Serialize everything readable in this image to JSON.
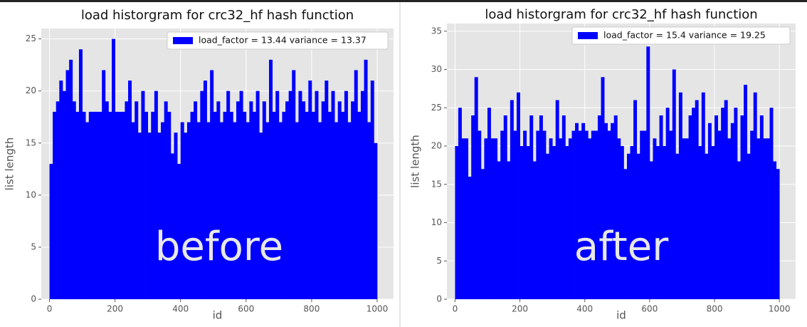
{
  "chart_data": [
    {
      "type": "histogram",
      "title": "load historgram for crc32_hf hash function",
      "xlabel": "id",
      "ylabel": "list length",
      "annotation": "before",
      "color": "#0000ff",
      "legend": "upper right",
      "grid": true,
      "series": [
        {
          "name": "load_factor = 13.44 variance = 13.37",
          "color": "#0000ff",
          "bins": [
            0,
            10,
            20,
            30,
            40,
            50,
            60,
            70,
            80,
            90,
            100,
            110,
            120,
            130,
            140,
            150,
            160,
            170,
            180,
            190,
            200,
            210,
            220,
            230,
            240,
            250,
            260,
            270,
            280,
            290,
            300,
            310,
            320,
            330,
            340,
            350,
            360,
            370,
            380,
            390,
            400,
            410,
            420,
            430,
            440,
            450,
            460,
            470,
            480,
            490,
            500,
            510,
            520,
            530,
            540,
            550,
            560,
            570,
            580,
            590,
            600,
            610,
            620,
            630,
            640,
            650,
            660,
            670,
            680,
            690,
            700,
            710,
            720,
            730,
            740,
            750,
            760,
            770,
            780,
            790,
            800,
            810,
            820,
            830,
            840,
            850,
            860,
            870,
            880,
            890,
            900,
            910,
            920,
            930,
            940,
            950,
            960,
            970,
            980,
            990,
            1000
          ],
          "values": [
            13,
            18,
            19,
            21,
            20,
            22,
            23,
            19,
            18,
            24,
            18,
            17,
            18,
            18,
            18,
            18,
            22,
            19,
            18,
            25,
            18,
            18,
            18,
            19,
            21,
            17,
            19,
            16,
            20,
            18,
            16,
            18,
            20,
            16,
            17,
            19,
            18,
            14,
            16,
            13,
            17,
            16,
            17,
            18,
            19,
            17,
            20,
            21,
            17,
            22,
            18,
            19,
            17,
            18,
            20,
            18,
            17,
            19,
            20,
            18,
            17,
            19,
            18,
            20,
            16,
            19,
            17,
            23,
            18,
            20,
            17,
            18,
            19,
            20,
            22,
            17,
            20,
            19,
            18,
            21,
            18,
            20,
            17,
            19,
            21,
            18,
            20,
            17,
            19,
            18,
            20,
            17,
            19,
            22,
            18,
            20,
            23,
            17,
            21,
            15
          ]
        }
      ],
      "xlim": [
        -25,
        1050
      ],
      "xticks": [
        0,
        200,
        400,
        600,
        800,
        1000
      ],
      "ylim": [
        0,
        26
      ],
      "yticks": [
        0,
        5,
        10,
        15,
        20,
        25
      ]
    },
    {
      "type": "histogram",
      "title": "load historgram for crc32_hf hash function",
      "xlabel": "id",
      "ylabel": "list length",
      "annotation": "after",
      "color": "#0000ff",
      "legend": "upper right",
      "grid": true,
      "series": [
        {
          "name": "load_factor = 15.4 variance = 19.25",
          "color": "#0000ff",
          "bins": [
            0,
            10,
            20,
            30,
            40,
            50,
            60,
            70,
            80,
            90,
            100,
            110,
            120,
            130,
            140,
            150,
            160,
            170,
            180,
            190,
            200,
            210,
            220,
            230,
            240,
            250,
            260,
            270,
            280,
            290,
            300,
            310,
            320,
            330,
            340,
            350,
            360,
            370,
            380,
            390,
            400,
            410,
            420,
            430,
            440,
            450,
            460,
            470,
            480,
            490,
            500,
            510,
            520,
            530,
            540,
            550,
            560,
            570,
            580,
            590,
            600,
            610,
            620,
            630,
            640,
            650,
            660,
            670,
            680,
            690,
            700,
            710,
            720,
            730,
            740,
            750,
            760,
            770,
            780,
            790,
            800,
            810,
            820,
            830,
            840,
            850,
            860,
            870,
            880,
            890,
            900,
            910,
            920,
            930,
            940,
            950,
            960,
            970,
            980,
            990,
            1000
          ],
          "values": [
            20,
            25,
            21,
            21,
            16,
            24,
            29,
            22,
            17,
            21,
            25,
            21,
            21,
            18,
            22,
            24,
            18,
            26,
            22,
            27,
            20,
            22,
            20,
            24,
            18,
            22,
            24,
            22,
            19,
            21,
            20,
            26,
            21,
            24,
            20,
            21,
            22,
            23,
            22,
            23,
            22,
            21,
            22,
            22,
            24,
            29,
            23,
            22,
            23,
            24,
            21,
            20,
            17,
            19,
            20,
            26,
            19,
            22,
            22,
            33,
            18,
            21,
            20,
            24,
            20,
            25,
            22,
            30,
            19,
            27,
            21,
            21,
            24,
            25,
            26,
            20,
            27,
            19,
            23,
            20,
            24,
            22,
            25,
            26,
            21,
            23,
            25,
            18,
            24,
            28,
            19,
            22,
            27,
            21,
            24,
            21,
            21,
            25,
            18,
            17
          ]
        }
      ],
      "xlim": [
        -25,
        1050
      ],
      "xticks": [
        0,
        200,
        400,
        600,
        800,
        1000
      ],
      "ylim": [
        0,
        36
      ],
      "yticks": [
        0,
        5,
        10,
        15,
        20,
        25,
        30,
        35
      ]
    }
  ]
}
